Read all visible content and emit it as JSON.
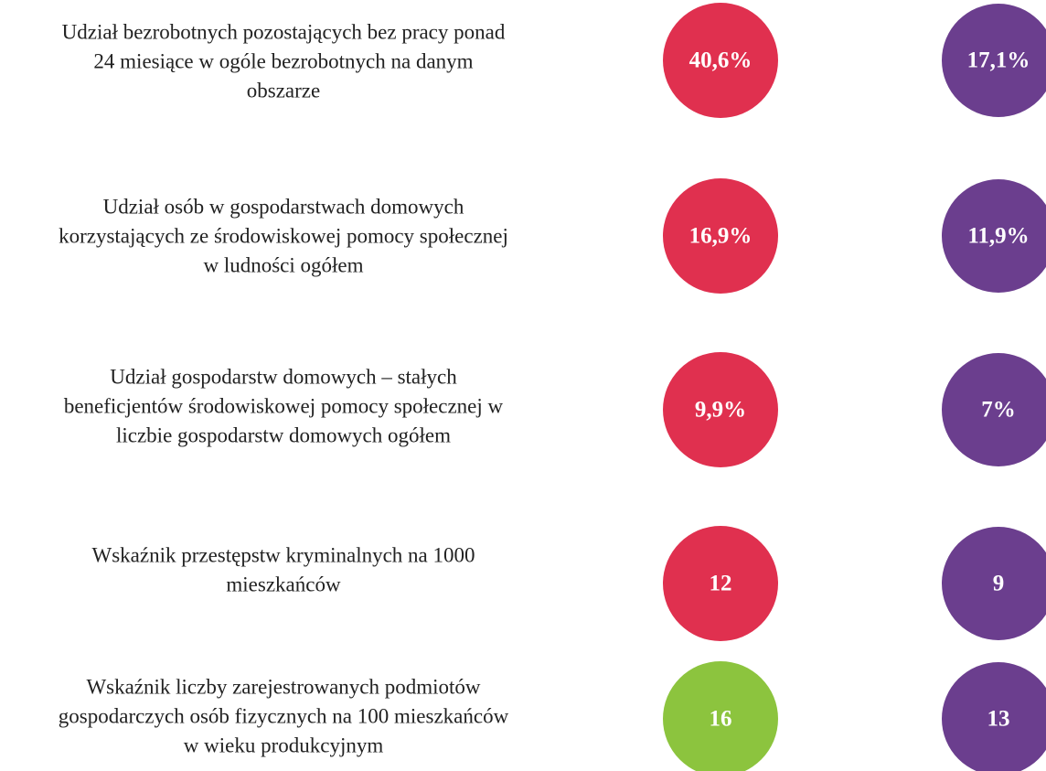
{
  "rows": [
    {
      "label": [
        "Udział bezrobotnych pozostających bez pracy ponad",
        "24 miesiące w ogóle bezrobotnych na danym",
        "obszarze"
      ],
      "left": "40,6%",
      "left_color": "#e0304f",
      "right": "17,1%",
      "right_color": "#6b3e8e"
    },
    {
      "label": [
        "Udział osób w gospodarstwach domowych",
        "korzystających ze środowiskowej pomocy społecznej",
        "w ludności ogółem"
      ],
      "left": "16,9%",
      "left_color": "#e0304f",
      "right": "11,9%",
      "right_color": "#6b3e8e"
    },
    {
      "label": [
        "Udział gospodarstw domowych – stałych",
        "beneficjentów środowiskowej pomocy społecznej w",
        "liczbie gospodarstw domowych ogółem"
      ],
      "left": "9,9%",
      "left_color": "#e0304f",
      "right": "7%",
      "right_color": "#6b3e8e"
    },
    {
      "label": [
        "Wskaźnik przestępstw kryminalnych na 1000",
        "mieszkańców"
      ],
      "left": "12",
      "left_color": "#e0304f",
      "right": "9",
      "right_color": "#6b3e8e"
    },
    {
      "label": [
        "Wskaźnik liczby zarejestrowanych podmiotów",
        "gospodarczych osób fizycznych na 100 mieszkańców",
        "w wieku produkcyjnym"
      ],
      "left": "16",
      "left_color": "#8cc43e",
      "right": "13",
      "right_color": "#6b3e8e"
    }
  ]
}
